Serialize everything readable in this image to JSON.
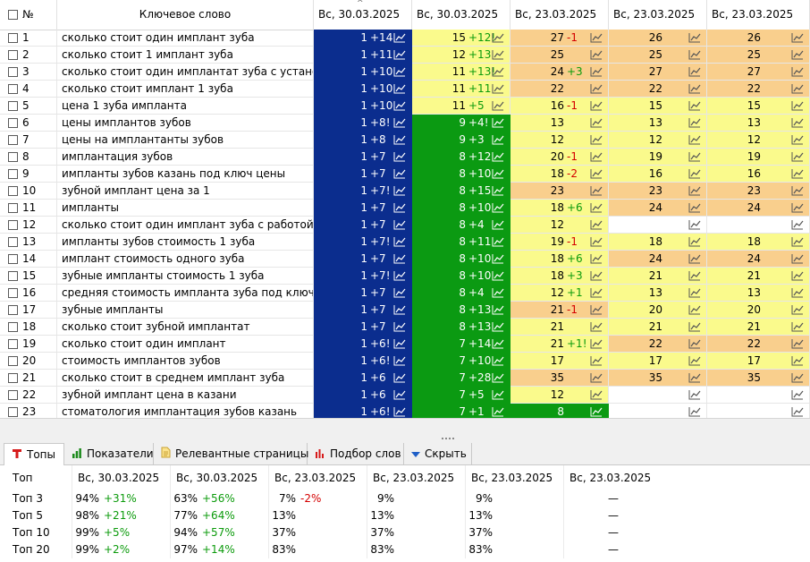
{
  "header": {
    "num": "№",
    "keyword": "Ключевое слово",
    "dates": [
      "Вс, 30.03.2025",
      "Вс, 30.03.2025",
      "Вс, 23.03.2025",
      "Вс, 23.03.2025",
      "Вс, 23.03.2025"
    ]
  },
  "rows": [
    {
      "n": "1",
      "kw": "сколько стоит один имплант зуба",
      "c": [
        [
          "1",
          "+14",
          "blue"
        ],
        [
          "15",
          "+12!",
          "yellow"
        ],
        [
          "27",
          "-1",
          "orange"
        ],
        [
          "26",
          "",
          "orange"
        ],
        [
          "26",
          "",
          "orange"
        ]
      ]
    },
    {
      "n": "2",
      "kw": "сколько стоит 1 имплант зуба",
      "c": [
        [
          "1",
          "+11",
          "blue"
        ],
        [
          "12",
          "+13",
          "yellow"
        ],
        [
          "25",
          "",
          "orange"
        ],
        [
          "25",
          "",
          "orange"
        ],
        [
          "25",
          "",
          "orange"
        ]
      ]
    },
    {
      "n": "3",
      "kw": "сколько стоит один имплантат зуба с устано...",
      "c": [
        [
          "1",
          "+10",
          "blue"
        ],
        [
          "11",
          "+13!",
          "yellow"
        ],
        [
          "24",
          "+3",
          "orange"
        ],
        [
          "27",
          "",
          "orange"
        ],
        [
          "27",
          "",
          "orange"
        ]
      ]
    },
    {
      "n": "4",
      "kw": "сколько стоит имплант 1 зуба",
      "c": [
        [
          "1",
          "+10",
          "blue"
        ],
        [
          "11",
          "+11",
          "yellow"
        ],
        [
          "22",
          "",
          "orange"
        ],
        [
          "22",
          "",
          "orange"
        ],
        [
          "22",
          "",
          "orange"
        ]
      ]
    },
    {
      "n": "5",
      "kw": "цена 1 зуба импланта",
      "c": [
        [
          "1",
          "+10",
          "blue"
        ],
        [
          "11",
          "+5",
          "yellow"
        ],
        [
          "16",
          "-1",
          "yellow"
        ],
        [
          "15",
          "",
          "yellow"
        ],
        [
          "15",
          "",
          "yellow"
        ]
      ]
    },
    {
      "n": "6",
      "kw": "цены имплантов зубов",
      "c": [
        [
          "1",
          "+8!",
          "blue"
        ],
        [
          "9",
          "+4!",
          "green"
        ],
        [
          "13",
          "",
          "yellow"
        ],
        [
          "13",
          "",
          "yellow"
        ],
        [
          "13",
          "",
          "yellow"
        ]
      ]
    },
    {
      "n": "7",
      "kw": "цены на имплантанты зубов",
      "c": [
        [
          "1",
          "+8",
          "blue"
        ],
        [
          "9",
          "+3",
          "green"
        ],
        [
          "12",
          "",
          "yellow"
        ],
        [
          "12",
          "",
          "yellow"
        ],
        [
          "12",
          "",
          "yellow"
        ]
      ]
    },
    {
      "n": "8",
      "kw": "имплантация зубов",
      "c": [
        [
          "1",
          "+7",
          "blue"
        ],
        [
          "8",
          "+12",
          "green"
        ],
        [
          "20",
          "-1",
          "yellow"
        ],
        [
          "19",
          "",
          "yellow"
        ],
        [
          "19",
          "",
          "yellow"
        ]
      ]
    },
    {
      "n": "9",
      "kw": "импланты зубов казань под ключ цены",
      "c": [
        [
          "1",
          "+7",
          "blue"
        ],
        [
          "8",
          "+10",
          "green"
        ],
        [
          "18",
          "-2",
          "yellow"
        ],
        [
          "16",
          "",
          "yellow"
        ],
        [
          "16",
          "",
          "yellow"
        ]
      ]
    },
    {
      "n": "10",
      "kw": "зубной имплант цена за 1",
      "c": [
        [
          "1",
          "+7!",
          "blue"
        ],
        [
          "8",
          "+15",
          "green"
        ],
        [
          "23",
          "",
          "orange"
        ],
        [
          "23",
          "",
          "orange"
        ],
        [
          "23",
          "",
          "orange"
        ]
      ]
    },
    {
      "n": "11",
      "kw": "импланты",
      "c": [
        [
          "1",
          "+7",
          "blue"
        ],
        [
          "8",
          "+10",
          "green"
        ],
        [
          "18",
          "+6",
          "yellow"
        ],
        [
          "24",
          "",
          "orange"
        ],
        [
          "24",
          "",
          "orange"
        ]
      ]
    },
    {
      "n": "12",
      "kw": "сколько стоит один имплант зуба с работой ...",
      "c": [
        [
          "1",
          "+7",
          "blue"
        ],
        [
          "8",
          "+4",
          "green"
        ],
        [
          "12",
          "",
          "yellow"
        ],
        [
          "",
          "",
          "white"
        ],
        [
          "",
          "",
          "white"
        ]
      ]
    },
    {
      "n": "13",
      "kw": "импланты зубов стоимость 1 зуба",
      "c": [
        [
          "1",
          "+7!",
          "blue"
        ],
        [
          "8",
          "+11",
          "green"
        ],
        [
          "19",
          "-1",
          "yellow"
        ],
        [
          "18",
          "",
          "yellow"
        ],
        [
          "18",
          "",
          "yellow"
        ]
      ]
    },
    {
      "n": "14",
      "kw": "имплант стоимость одного зуба",
      "c": [
        [
          "1",
          "+7",
          "blue"
        ],
        [
          "8",
          "+10",
          "green"
        ],
        [
          "18",
          "+6",
          "yellow"
        ],
        [
          "24",
          "",
          "orange"
        ],
        [
          "24",
          "",
          "orange"
        ]
      ]
    },
    {
      "n": "15",
      "kw": "зубные импланты стоимость 1 зуба",
      "c": [
        [
          "1",
          "+7!",
          "blue"
        ],
        [
          "8",
          "+10",
          "green"
        ],
        [
          "18",
          "+3",
          "yellow"
        ],
        [
          "21",
          "",
          "yellow"
        ],
        [
          "21",
          "",
          "yellow"
        ]
      ]
    },
    {
      "n": "16",
      "kw": "средняя стоимость импланта зуба под ключ",
      "c": [
        [
          "1",
          "+7",
          "blue"
        ],
        [
          "8",
          "+4",
          "green"
        ],
        [
          "12",
          "+1",
          "yellow"
        ],
        [
          "13",
          "",
          "yellow"
        ],
        [
          "13",
          "",
          "yellow"
        ]
      ]
    },
    {
      "n": "17",
      "kw": "зубные импланты",
      "c": [
        [
          "1",
          "+7",
          "blue"
        ],
        [
          "8",
          "+13",
          "green"
        ],
        [
          "21",
          "-1",
          "orange"
        ],
        [
          "20",
          "",
          "yellow"
        ],
        [
          "20",
          "",
          "yellow"
        ]
      ]
    },
    {
      "n": "18",
      "kw": "сколько стоит зубной имплантат",
      "c": [
        [
          "1",
          "+7",
          "blue"
        ],
        [
          "8",
          "+13",
          "green"
        ],
        [
          "21",
          "",
          "yellow"
        ],
        [
          "21",
          "",
          "yellow"
        ],
        [
          "21",
          "",
          "yellow"
        ]
      ]
    },
    {
      "n": "19",
      "kw": "сколько стоит один имплант",
      "c": [
        [
          "1",
          "+6!",
          "blue"
        ],
        [
          "7",
          "+14",
          "green"
        ],
        [
          "21",
          "+1!",
          "yellow"
        ],
        [
          "22",
          "",
          "orange"
        ],
        [
          "22",
          "",
          "orange"
        ]
      ]
    },
    {
      "n": "20",
      "kw": "стоимость имплантов зубов",
      "c": [
        [
          "1",
          "+6!",
          "blue"
        ],
        [
          "7",
          "+10",
          "green"
        ],
        [
          "17",
          "",
          "yellow"
        ],
        [
          "17",
          "",
          "yellow"
        ],
        [
          "17",
          "",
          "yellow"
        ]
      ]
    },
    {
      "n": "21",
      "kw": "сколько стоит в среднем имплант зуба",
      "c": [
        [
          "1",
          "+6",
          "blue"
        ],
        [
          "7",
          "+28",
          "green"
        ],
        [
          "35",
          "",
          "orange"
        ],
        [
          "35",
          "",
          "orange"
        ],
        [
          "35",
          "",
          "orange"
        ]
      ]
    },
    {
      "n": "22",
      "kw": "зубной имплант цена в казани",
      "c": [
        [
          "1",
          "+6",
          "blue"
        ],
        [
          "7",
          "+5",
          "green"
        ],
        [
          "12",
          "",
          "yellow"
        ],
        [
          "",
          "",
          "white"
        ],
        [
          "",
          "",
          "white"
        ]
      ]
    },
    {
      "n": "23",
      "kw": "стоматология имплантация зубов казань",
      "c": [
        [
          "1",
          "+6!",
          "blue"
        ],
        [
          "7",
          "+1",
          "green"
        ],
        [
          "8",
          "",
          "green"
        ],
        [
          "",
          "",
          "white"
        ],
        [
          "",
          "",
          "white"
        ]
      ]
    }
  ],
  "tabs": [
    {
      "label": "Топы",
      "icon": "tops-icon",
      "active": true
    },
    {
      "label": "Показатели",
      "icon": "bar-chart-icon",
      "active": false
    },
    {
      "label": "Релевантные страницы",
      "icon": "document-icon",
      "active": false
    },
    {
      "label": "Подбор слов",
      "icon": "column-chart-icon",
      "active": false
    },
    {
      "label": "Скрыть",
      "icon": "hide-arrow-icon",
      "active": false
    }
  ],
  "tops": {
    "label_header": "Топ",
    "dates": [
      "Вс, 30.03.2025",
      "Вс, 30.03.2025",
      "Вс, 23.03.2025",
      "Вс, 23.03.2025",
      "Вс, 23.03.2025",
      "Вс, 23.03.2025"
    ],
    "rows": [
      {
        "label": "Топ 3",
        "cells": [
          [
            "94%",
            "+31%"
          ],
          [
            "63%",
            "+56%"
          ],
          [
            "7%",
            "-2%"
          ],
          [
            "9%",
            ""
          ],
          [
            "9%",
            ""
          ],
          [
            "—",
            ""
          ]
        ]
      },
      {
        "label": "Топ 5",
        "cells": [
          [
            "98%",
            "+21%"
          ],
          [
            "77%",
            "+64%"
          ],
          [
            "13%",
            ""
          ],
          [
            "13%",
            ""
          ],
          [
            "13%",
            ""
          ],
          [
            "—",
            ""
          ]
        ]
      },
      {
        "label": "Топ 10",
        "cells": [
          [
            "99%",
            "+5%"
          ],
          [
            "94%",
            "+57%"
          ],
          [
            "37%",
            ""
          ],
          [
            "37%",
            ""
          ],
          [
            "37%",
            ""
          ],
          [
            "—",
            ""
          ]
        ]
      },
      {
        "label": "Топ 20",
        "cells": [
          [
            "99%",
            "+2%"
          ],
          [
            "97%",
            "+14%"
          ],
          [
            "83%",
            ""
          ],
          [
            "83%",
            ""
          ],
          [
            "83%",
            ""
          ],
          [
            "—",
            ""
          ]
        ]
      }
    ]
  },
  "colors": {
    "blue": "#0b2d8e",
    "green": "#0b9a12",
    "yellow": "#fafa8c",
    "orange": "#f9cf8d",
    "positive": "#0c9b0c",
    "negative": "#d40000"
  }
}
